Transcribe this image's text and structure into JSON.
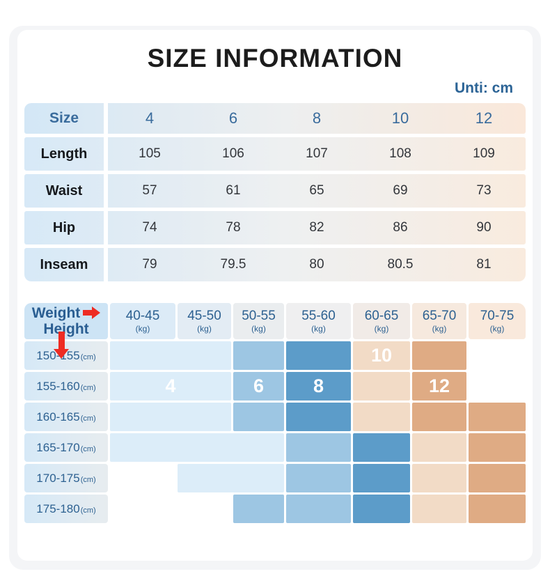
{
  "page": {
    "title": "SIZE INFORMATION",
    "unit_note": "Unti: cm"
  },
  "size_table": {
    "corner_label": "Size",
    "sizes": [
      "4",
      "6",
      "8",
      "10",
      "12"
    ],
    "rows": [
      {
        "label": "Length",
        "values": [
          "105",
          "106",
          "107",
          "108",
          "109"
        ]
      },
      {
        "label": "Waist",
        "values": [
          "57",
          "61",
          "65",
          "69",
          "73"
        ]
      },
      {
        "label": "Hip",
        "values": [
          "74",
          "78",
          "82",
          "86",
          "90"
        ]
      },
      {
        "label": "Inseam",
        "values": [
          "79",
          "79.5",
          "80",
          "80.5",
          "81"
        ]
      }
    ]
  },
  "fit_matrix": {
    "corner": {
      "weight_label": "Weight",
      "height_label": "Height"
    },
    "weight_columns": [
      {
        "range": "40-45",
        "unit": "(kg)"
      },
      {
        "range": "45-50",
        "unit": "(kg)"
      },
      {
        "range": "50-55",
        "unit": "(kg)"
      },
      {
        "range": "55-60",
        "unit": "(kg)"
      },
      {
        "range": "60-65",
        "unit": "(kg)"
      },
      {
        "range": "65-70",
        "unit": "(kg)"
      },
      {
        "range": "70-75",
        "unit": "(kg)"
      }
    ],
    "rows": [
      {
        "height": "150-155",
        "unit": "(cm)",
        "cells": [
          {
            "size": "4",
            "span": 2
          },
          {
            "size": "6",
            "span": 1
          },
          {
            "size": "8",
            "span": 1
          },
          {
            "size": "10",
            "span": 1,
            "label": "10"
          },
          {
            "size": "12",
            "span": 1
          },
          {
            "size": "",
            "span": 1
          }
        ]
      },
      {
        "height": "155-160",
        "unit": "(cm)",
        "cells": [
          {
            "size": "4",
            "span": 2,
            "label": "4"
          },
          {
            "size": "6",
            "span": 1,
            "label": "6"
          },
          {
            "size": "8",
            "span": 1,
            "label": "8"
          },
          {
            "size": "10",
            "span": 1
          },
          {
            "size": "12",
            "span": 1,
            "label": "12"
          },
          {
            "size": "",
            "span": 1
          }
        ]
      },
      {
        "height": "160-165",
        "unit": "(cm)",
        "cells": [
          {
            "size": "4",
            "span": 2
          },
          {
            "size": "6",
            "span": 1
          },
          {
            "size": "8",
            "span": 1
          },
          {
            "size": "10",
            "span": 1
          },
          {
            "size": "12",
            "span": 1
          },
          {
            "size": "12",
            "span": 1
          }
        ]
      },
      {
        "height": "165-170",
        "unit": "(cm)",
        "cells": [
          {
            "size": "4",
            "span": 3
          },
          {
            "size": "6",
            "span": 1
          },
          {
            "size": "8",
            "span": 1
          },
          {
            "size": "10",
            "span": 1
          },
          {
            "size": "12",
            "span": 1
          }
        ]
      },
      {
        "height": "170-175",
        "unit": "(cm)",
        "cells": [
          {
            "size": "",
            "span": 1
          },
          {
            "size": "4",
            "span": 2
          },
          {
            "size": "6",
            "span": 1
          },
          {
            "size": "8",
            "span": 1
          },
          {
            "size": "10",
            "span": 1
          },
          {
            "size": "12",
            "span": 1
          }
        ]
      },
      {
        "height": "175-180",
        "unit": "(cm)",
        "cells": [
          {
            "size": "",
            "span": 1
          },
          {
            "size": "",
            "span": 1
          },
          {
            "size": "6",
            "span": 1
          },
          {
            "size": "6",
            "span": 1
          },
          {
            "size": "8",
            "span": 1
          },
          {
            "size": "10",
            "span": 1
          },
          {
            "size": "12",
            "span": 1
          }
        ]
      }
    ],
    "size_colors": {
      "4": "#dcedf9",
      "6": "#9dc6e3",
      "8": "#5c9cc9",
      "10": "#f2dbc6",
      "12": "#dfab84",
      "": "transparent"
    },
    "header_cell_colors": [
      "#cde4f5",
      "#dcebf7",
      "#e3ecf4",
      "#eaedef",
      "#efeff0",
      "#f1ebe7",
      "#f6e9de",
      "#f9e9dc"
    ],
    "arrow_color": "#ee2c23"
  },
  "chart_data": [
    {
      "type": "table",
      "title": "SIZE INFORMATION",
      "unit": "cm",
      "columns": [
        "Size",
        "4",
        "6",
        "8",
        "10",
        "12"
      ],
      "rows": [
        [
          "Length",
          105,
          106,
          107,
          108,
          109
        ],
        [
          "Waist",
          57,
          61,
          65,
          69,
          73
        ],
        [
          "Hip",
          74,
          78,
          82,
          86,
          90
        ],
        [
          "Inseam",
          79,
          79.5,
          80,
          80.5,
          81
        ]
      ]
    },
    {
      "type": "heatmap",
      "xlabel": "Weight",
      "ylabel": "Height",
      "x_categories": [
        "40-45",
        "45-50",
        "50-55",
        "55-60",
        "60-65",
        "65-70",
        "70-75"
      ],
      "x_unit": "kg",
      "y_categories": [
        "150-155",
        "155-160",
        "160-165",
        "165-170",
        "170-175",
        "175-180"
      ],
      "y_unit": "cm",
      "values": [
        [
          "4",
          "4",
          "6",
          "8",
          "10",
          "12",
          null
        ],
        [
          "4",
          "4",
          "6",
          "8",
          "10",
          "12",
          null
        ],
        [
          "4",
          "4",
          "6",
          "8",
          "10",
          "12",
          "12"
        ],
        [
          "4",
          "4",
          "4",
          "6",
          "8",
          "10",
          "12"
        ],
        [
          null,
          "4",
          "4",
          "6",
          "8",
          "10",
          "12"
        ],
        [
          null,
          null,
          "6",
          "6",
          "8",
          "10",
          "12"
        ]
      ],
      "legend": "cell color/value = recommended size (4,6,8,10,12)"
    }
  ]
}
